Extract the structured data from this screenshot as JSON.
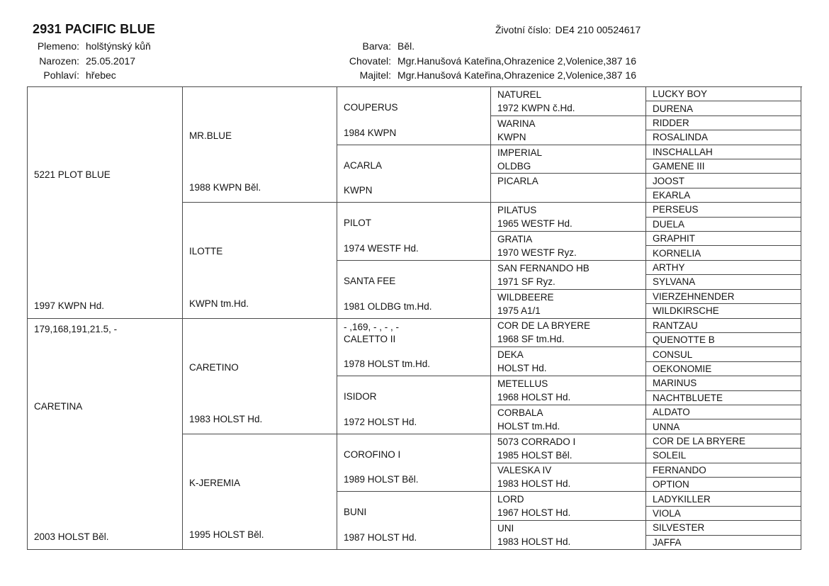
{
  "header": {
    "title": "2931 PACIFIC BLUE",
    "left_fields": [
      {
        "label": "Plemeno:",
        "value": "holštýnský kůň"
      },
      {
        "label": "Narozen:",
        "value": "25.05.2017"
      },
      {
        "label": "Pohlaví:",
        "value": "hřebec"
      }
    ],
    "center_fields": [
      {
        "label": "Barva:",
        "value": "Běl."
      },
      {
        "label": "Chovatel:",
        "value": "Mgr.Hanušová Kateřina,Ohrazenice 2,Volenice,387 16"
      },
      {
        "label": "Majitel:",
        "value": "Mgr.Hanušová Kateřina,Ohrazenice 2,Volenice,387 16"
      }
    ],
    "life_number": {
      "label": "Životní číslo:",
      "value": "DE4 210 00524617"
    }
  },
  "pedigree": {
    "gen1": [
      {
        "meas": "",
        "name": "5221 PLOT BLUE",
        "info": "1997 KWPN Hd."
      },
      {
        "meas": "179,168,191,21.5, -",
        "name": "CARETINA",
        "info": "2003 HOLST Běl."
      }
    ],
    "gen2": [
      {
        "name": "MR.BLUE",
        "info": "1988 KWPN Běl."
      },
      {
        "name": "ILOTTE",
        "info": "KWPN tm.Hd."
      },
      {
        "name": "CARETINO",
        "info": "1983 HOLST Hd."
      },
      {
        "name": "K-JEREMIA",
        "info": "1995 HOLST Běl."
      }
    ],
    "gen3": [
      {
        "meas": "",
        "name": "COUPERUS",
        "info": "1984 KWPN"
      },
      {
        "meas": "",
        "name": "ACARLA",
        "info": "KWPN"
      },
      {
        "meas": "",
        "name": "PILOT",
        "info": "1974 WESTF Hd."
      },
      {
        "meas": "",
        "name": "SANTA FEE",
        "info": "1981 OLDBG tm.Hd."
      },
      {
        "meas": "- ,169, - , - , -",
        "name": "CALETTO II",
        "info": "1978 HOLST tm.Hd."
      },
      {
        "meas": "",
        "name": "ISIDOR",
        "info": "1972 HOLST Hd."
      },
      {
        "meas": "",
        "name": "COROFINO I",
        "info": "1989 HOLST Běl."
      },
      {
        "meas": "",
        "name": "BUNI",
        "info": "1987 HOLST Hd."
      }
    ],
    "gen4": [
      {
        "name": "NATUREL",
        "info": "1972 KWPN č.Hd."
      },
      {
        "name": "WARINA",
        "info": "KWPN"
      },
      {
        "name": "IMPERIAL",
        "info": "OLDBG"
      },
      {
        "name": "PICARLA",
        "info": ""
      },
      {
        "name": "PILATUS",
        "info": "1965 WESTF Hd."
      },
      {
        "name": "GRATIA",
        "info": "1970 WESTF Ryz."
      },
      {
        "name": "SAN FERNANDO HB",
        "info": "1971 SF Ryz."
      },
      {
        "name": "WILDBEERE",
        "info": "1975 A1/1"
      },
      {
        "name": "COR DE LA BRYERE",
        "info": "1968 SF tm.Hd."
      },
      {
        "name": "DEKA",
        "info": "HOLST Hd."
      },
      {
        "name": "METELLUS",
        "info": "1968 HOLST Hd."
      },
      {
        "name": "CORBALA",
        "info": "HOLST tm.Hd."
      },
      {
        "name": "5073 CORRADO I",
        "info": "1985 HOLST Běl."
      },
      {
        "name": "VALESKA IV",
        "info": "1983 HOLST Hd."
      },
      {
        "name": "LORD",
        "info": "1967 HOLST Hd."
      },
      {
        "name": "UNI",
        "info": "1983 HOLST Hd."
      }
    ],
    "gen5": [
      "LUCKY BOY",
      "DURENA",
      "RIDDER",
      "ROSALINDA",
      "INSCHALLAH",
      "GAMENE III",
      "JOOST",
      "EKARLA",
      "PERSEUS",
      "DUELA",
      "GRAPHIT",
      "KORNELIA",
      "ARTHY",
      "SYLVANA",
      "VIERZEHNENDER",
      "WILDKIRSCHE",
      "RANTZAU",
      "QUENOTTE B",
      "CONSUL",
      "OEKONOMIE",
      "MARINUS",
      "NACHTBLUETE",
      "ALDATO",
      "UNNA",
      "COR DE LA BRYERE",
      "SOLEIL",
      "FERNANDO",
      "OPTION",
      "LADYKILLER",
      "VIOLA",
      "SILVESTER",
      "JAFFA"
    ]
  },
  "colors": {
    "border": "#4a4a4a",
    "text": "#141414",
    "background": "#ffffff"
  }
}
